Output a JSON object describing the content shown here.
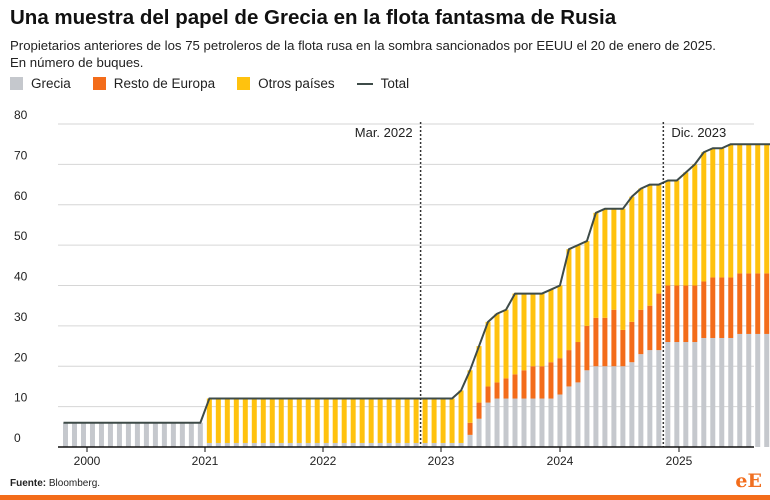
{
  "title": "Una muestra del papel de Grecia en la flota fantasma de Rusia",
  "subtitle_line1": "Propietarios anteriores de los 75 petroleros de la flota rusa en la sombra sancionados por EEUU el 20 de enero de 2025.",
  "subtitle_line2": "En número de buques.",
  "legend": [
    {
      "label": "Grecia",
      "color": "#c5c8cd",
      "kind": "bar"
    },
    {
      "label": "Resto de Europa",
      "color": "#f36c1a",
      "kind": "bar"
    },
    {
      "label": "Otros países",
      "color": "#ffc20e",
      "kind": "bar"
    },
    {
      "label": "Total",
      "color": "#3e4b48",
      "kind": "line"
    }
  ],
  "source_label": "Fuente:",
  "source_text": "Bloomberg.",
  "logo": {
    "e": "e",
    "E": "E"
  },
  "colors": {
    "accent": "#f36c1a",
    "grid": "#d6d6d6",
    "axis": "#111111"
  },
  "chart_data": {
    "type": "bar",
    "stacked": true,
    "title": "Una muestra del papel de Grecia en la flota fantasma de Rusia",
    "ylim": [
      0,
      80
    ],
    "yticks": [
      0,
      10,
      20,
      30,
      40,
      50,
      60,
      70,
      80
    ],
    "xticks": [
      "2000",
      "2021",
      "2022",
      "2023",
      "2024",
      "2025"
    ],
    "annotations": [
      {
        "label": "Mar. 2022",
        "at_bar": 40
      },
      {
        "label": "Dic. 2023",
        "at_bar": 67
      }
    ],
    "series": [
      {
        "name": "Grecia",
        "color": "#c5c8cd",
        "values": [
          6,
          6,
          6,
          6,
          6,
          6,
          6,
          6,
          6,
          6,
          6,
          6,
          6,
          6,
          6,
          6,
          1,
          1,
          1,
          1,
          1,
          1,
          1,
          1,
          1,
          1,
          1,
          1,
          1,
          1,
          1,
          1,
          1,
          1,
          1,
          1,
          1,
          1,
          1,
          1,
          1,
          1,
          1,
          1,
          1,
          3,
          7,
          11,
          12,
          12,
          12,
          12,
          12,
          12,
          12,
          13,
          15,
          16,
          19,
          20,
          20,
          20,
          20,
          21,
          23,
          24,
          24,
          26,
          26,
          26,
          26,
          27,
          27,
          27,
          27,
          28,
          28,
          28,
          28,
          28,
          28
        ]
      },
      {
        "name": "Resto de Europa",
        "color": "#f36c1a",
        "values": [
          0,
          0,
          0,
          0,
          0,
          0,
          0,
          0,
          0,
          0,
          0,
          0,
          0,
          0,
          0,
          0,
          0,
          0,
          0,
          0,
          0,
          0,
          0,
          0,
          0,
          0,
          0,
          0,
          0,
          0,
          0,
          0,
          0,
          0,
          0,
          0,
          0,
          0,
          0,
          0,
          0,
          0,
          0,
          0,
          0,
          3,
          4,
          4,
          4,
          5,
          6,
          7,
          8,
          8,
          9,
          9,
          9,
          10,
          11,
          12,
          12,
          14,
          9,
          10,
          11,
          11,
          14,
          14,
          14,
          14,
          14,
          14,
          15,
          15,
          15,
          15,
          15,
          15,
          15,
          15,
          15
        ]
      },
      {
        "name": "Otros países",
        "color": "#ffc20e",
        "values": [
          0,
          0,
          0,
          0,
          0,
          0,
          0,
          0,
          0,
          0,
          0,
          0,
          0,
          0,
          0,
          0,
          11,
          11,
          11,
          11,
          11,
          11,
          11,
          11,
          11,
          11,
          11,
          11,
          11,
          11,
          11,
          11,
          11,
          11,
          11,
          11,
          11,
          11,
          11,
          11,
          11,
          11,
          11,
          11,
          13,
          13,
          14,
          16,
          17,
          17,
          20,
          19,
          18,
          18,
          18,
          18,
          25,
          24,
          21,
          26,
          27,
          25,
          30,
          31,
          30,
          30,
          27,
          26,
          26,
          28,
          30,
          32,
          32,
          32,
          33,
          32,
          32,
          32,
          32,
          32,
          32
        ]
      },
      {
        "name": "Total",
        "values": [
          6,
          6,
          6,
          6,
          6,
          6,
          6,
          6,
          6,
          6,
          6,
          6,
          6,
          6,
          6,
          6,
          12,
          12,
          12,
          12,
          12,
          12,
          12,
          12,
          12,
          12,
          12,
          12,
          12,
          12,
          12,
          12,
          12,
          12,
          12,
          12,
          12,
          12,
          12,
          12,
          12,
          12,
          12,
          12,
          14,
          19,
          25,
          31,
          33,
          34,
          38,
          38,
          38,
          38,
          39,
          40,
          49,
          50,
          51,
          58,
          59,
          59,
          59,
          62,
          64,
          65,
          65,
          66,
          66,
          68,
          70,
          73,
          74,
          74,
          75,
          75,
          75,
          75,
          75,
          75,
          75
        ]
      }
    ]
  }
}
